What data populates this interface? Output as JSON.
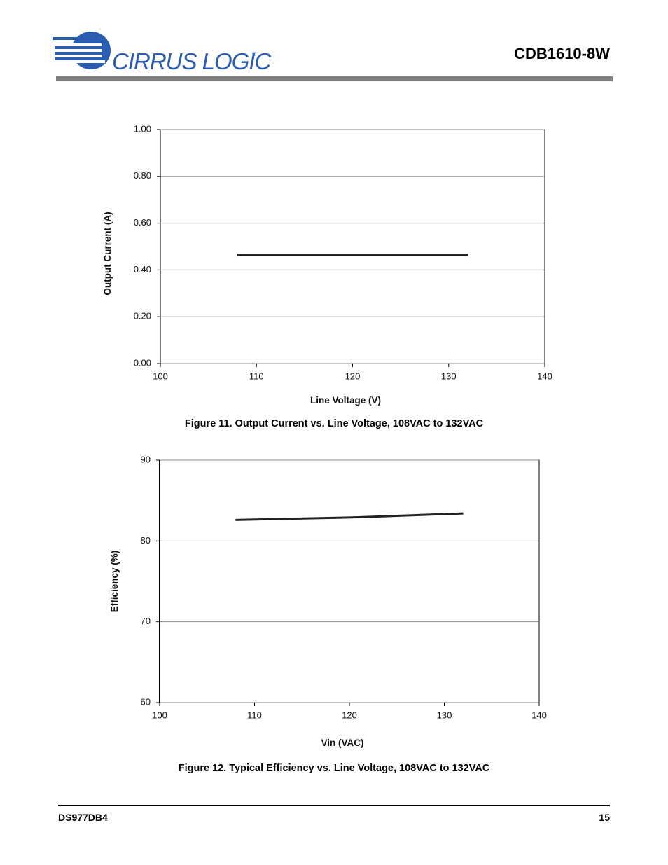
{
  "header": {
    "logo_text": "CIRRUS LOGIC",
    "logo_mark": "®",
    "doc_title": "CDB1610-8W"
  },
  "chart_data": [
    {
      "type": "line",
      "x": [
        108,
        132
      ],
      "series": [
        {
          "values": [
            0.465,
            0.465
          ],
          "color": "#222222"
        }
      ],
      "xlim": [
        100,
        140
      ],
      "xticks": [
        100,
        110,
        120,
        130,
        140
      ],
      "ylim": [
        0,
        1
      ],
      "yticks": [
        {
          "value": 0,
          "label": "0.00"
        },
        {
          "value": 0.2,
          "label": "0.20"
        },
        {
          "value": 0.4,
          "label": "0.40"
        },
        {
          "value": 0.6,
          "label": "0.60"
        },
        {
          "value": 0.8,
          "label": "0.80"
        },
        {
          "value": 1,
          "label": "1.00"
        }
      ],
      "grid": true,
      "xlabel": "Line Voltage (V)",
      "ylabel": "Output Current (A)",
      "caption": "Figure 11.  Output Current vs. Line Voltage, 108VAC to 132VAC"
    },
    {
      "type": "line",
      "x": [
        108,
        120,
        132
      ],
      "series": [
        {
          "values": [
            82.6,
            82.9,
            83.4
          ],
          "color": "#222222"
        }
      ],
      "xlim": [
        100,
        140
      ],
      "xticks": [
        100,
        110,
        120,
        130,
        140
      ],
      "ylim": [
        60,
        90
      ],
      "yticks": [
        60,
        70,
        80,
        90
      ],
      "grid": true,
      "xlabel": "Vin (VAC)",
      "ylabel": "Efficiency (%)",
      "caption": "Figure 12.  Typical Efficiency vs. Line Voltage, 108VAC to 132VAC"
    }
  ],
  "footer": {
    "left": "DS977DB4",
    "right": "15"
  }
}
